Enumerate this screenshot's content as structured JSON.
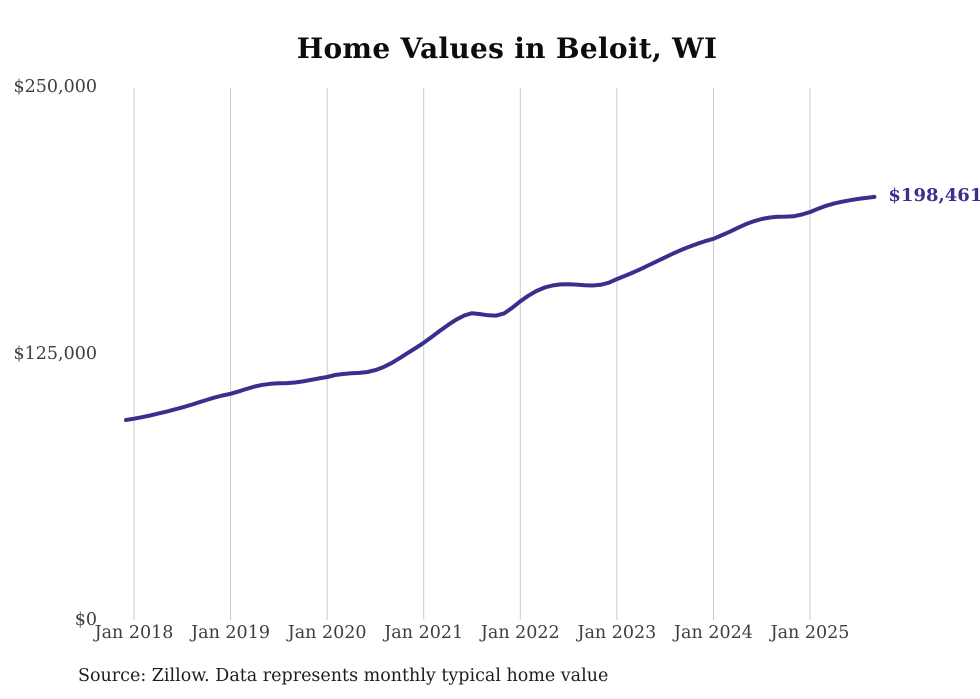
{
  "chart_data": {
    "type": "line",
    "title": "Home Values in Beloit, WI",
    "xlabel": "",
    "ylabel": "",
    "ylim": [
      0,
      250000
    ],
    "y_tick_labels": [
      "$250,000",
      "$125,000",
      "$0"
    ],
    "y_tick_values": [
      250000,
      125000,
      0
    ],
    "x_tick_labels": [
      "Jan 2018",
      "Jan 2019",
      "Jan 2020",
      "Jan 2021",
      "Jan 2022",
      "Jan 2023",
      "Jan 2024",
      "Jan 2025"
    ],
    "grid": "vertical-only",
    "legend": "none",
    "line_color": "#38308f",
    "frequency": "monthly",
    "start_month": "Dec 2017",
    "end_month": "Sep 2025",
    "latest_value": 198461,
    "end_label": "$198,461",
    "source": "Source: Zillow. Data represents monthly typical home value",
    "values": [
      93800,
      94400,
      95100,
      95900,
      96800,
      97700,
      98700,
      99700,
      100800,
      102000,
      103200,
      104300,
      105300,
      106100,
      107200,
      108400,
      109500,
      110300,
      110800,
      111000,
      111100,
      111400,
      111900,
      112600,
      113300,
      114000,
      114900,
      115400,
      115700,
      115900,
      116300,
      117200,
      118600,
      120500,
      122800,
      125200,
      127600,
      130000,
      132800,
      135600,
      138300,
      140800,
      142800,
      143900,
      143500,
      142900,
      142800,
      143800,
      146500,
      149500,
      152100,
      154300,
      155900,
      156900,
      157400,
      157500,
      157300,
      157000,
      156900,
      157200,
      158200,
      159900,
      161400,
      163000,
      164700,
      166500,
      168300,
      170100,
      171900,
      173600,
      175100,
      176500,
      177700,
      178800,
      180400,
      182100,
      183900,
      185600,
      187000,
      188100,
      188800,
      189100,
      189200,
      189400,
      190200,
      191300,
      192900,
      194300,
      195400,
      196200,
      196900,
      197500,
      198000,
      198461
    ]
  }
}
